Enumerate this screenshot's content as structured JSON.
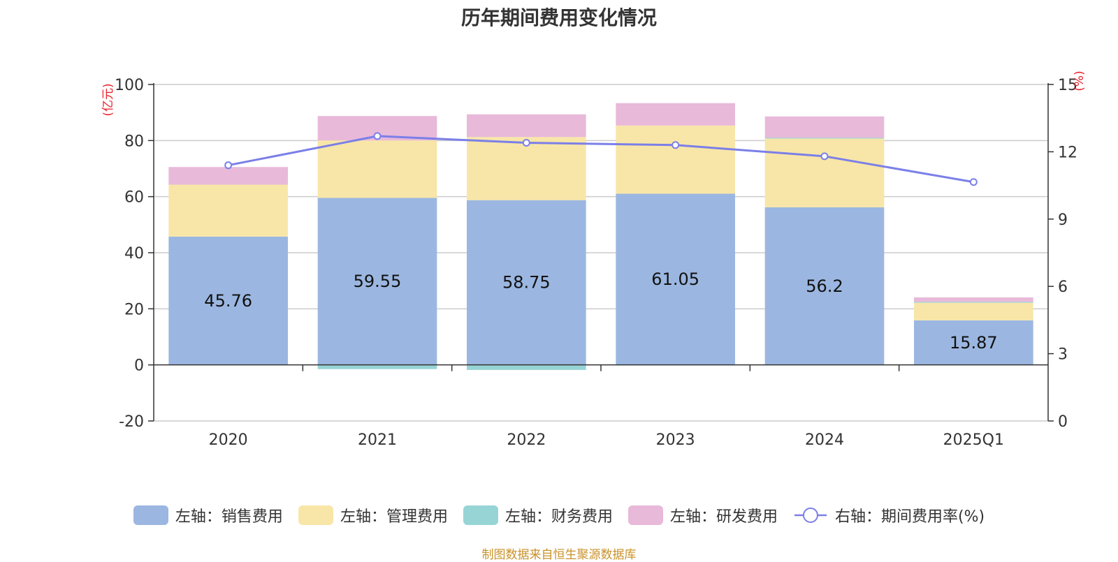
{
  "chart_data": {
    "type": "bar",
    "stacked": true,
    "title": "历年期间费用变化情况",
    "categories": [
      "2020",
      "2021",
      "2022",
      "2023",
      "2024",
      "2025Q1"
    ],
    "y_left": {
      "unit_label": "(亿元)",
      "range": [
        -20,
        100
      ],
      "ticks": [
        -20,
        0,
        20,
        40,
        60,
        80,
        100
      ]
    },
    "y_right": {
      "unit_label": "(%)",
      "range": [
        0,
        15
      ],
      "ticks": [
        0,
        3,
        6,
        9,
        12,
        15
      ]
    },
    "series": [
      {
        "name": "左轴：销售费用",
        "axis": "left",
        "type": "bar",
        "color": "#9bb7e1",
        "values": [
          45.76,
          59.55,
          58.75,
          61.05,
          56.2,
          15.87
        ],
        "show_labels": true
      },
      {
        "name": "左轴：管理费用",
        "axis": "left",
        "type": "bar",
        "color": "#f8e6a8",
        "values": [
          18.5,
          20.5,
          22.5,
          24.3,
          24.5,
          6.3
        ]
      },
      {
        "name": "左轴：财务费用",
        "axis": "left",
        "type": "bar",
        "color": "#97d4d6",
        "values": [
          0,
          -1.5,
          -1.8,
          -0.2,
          0.3,
          0.3
        ]
      },
      {
        "name": "左轴：研发费用",
        "axis": "left",
        "type": "bar",
        "color": "#e8b9d9",
        "values": [
          6.3,
          8.7,
          8.1,
          8.0,
          7.6,
          1.6
        ]
      },
      {
        "name": "右轴：期间费用率(%)",
        "axis": "right",
        "type": "line",
        "color": "#7b7fe8",
        "values": [
          11.4,
          12.7,
          12.4,
          12.3,
          11.8,
          10.65
        ]
      }
    ],
    "grid": true,
    "legend_position": "bottom"
  },
  "source_note": "制图数据来自恒生聚源数据库"
}
